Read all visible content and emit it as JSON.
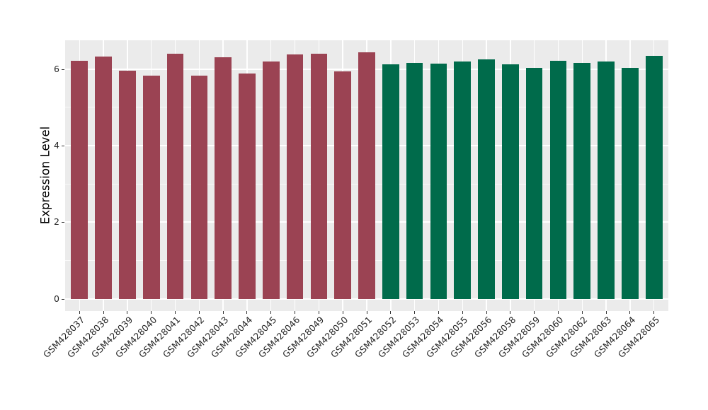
{
  "chart_data": {
    "type": "bar",
    "title": "",
    "xlabel": "",
    "ylabel": "Expression Level",
    "ylim": [
      0,
      6.8
    ],
    "yticks": [
      0,
      2,
      4,
      6
    ],
    "minor_gridlines": [
      1,
      3,
      5
    ],
    "legend": "none",
    "grid": "on",
    "plot_bg_color": "#EBEBEB",
    "grid_color": "#FFFFFF",
    "tick_color": "#333333",
    "tick_label_color": "#262626",
    "group_colors": {
      "red_group": "#9B4353",
      "green_group": "#006B4B"
    },
    "bars": [
      {
        "label": "GSM428037",
        "value": 6.21,
        "color": "#9B4353"
      },
      {
        "label": "GSM428038",
        "value": 6.33,
        "color": "#9B4353"
      },
      {
        "label": "GSM428039",
        "value": 5.95,
        "color": "#9B4353"
      },
      {
        "label": "GSM428040",
        "value": 5.83,
        "color": "#9B4353"
      },
      {
        "label": "GSM428041",
        "value": 6.4,
        "color": "#9B4353"
      },
      {
        "label": "GSM428042",
        "value": 5.83,
        "color": "#9B4353"
      },
      {
        "label": "GSM428043",
        "value": 6.31,
        "color": "#9B4353"
      },
      {
        "label": "GSM428044",
        "value": 5.88,
        "color": "#9B4353"
      },
      {
        "label": "GSM428045",
        "value": 6.2,
        "color": "#9B4353"
      },
      {
        "label": "GSM428046",
        "value": 6.38,
        "color": "#9B4353"
      },
      {
        "label": "GSM428049",
        "value": 6.4,
        "color": "#9B4353"
      },
      {
        "label": "GSM428050",
        "value": 5.93,
        "color": "#9B4353"
      },
      {
        "label": "GSM428051",
        "value": 6.43,
        "color": "#9B4353"
      },
      {
        "label": "GSM428052",
        "value": 6.12,
        "color": "#006B4B"
      },
      {
        "label": "GSM428053",
        "value": 6.16,
        "color": "#006B4B"
      },
      {
        "label": "GSM428054",
        "value": 6.14,
        "color": "#006B4B"
      },
      {
        "label": "GSM428055",
        "value": 6.19,
        "color": "#006B4B"
      },
      {
        "label": "GSM428056",
        "value": 6.25,
        "color": "#006B4B"
      },
      {
        "label": "GSM428058",
        "value": 6.13,
        "color": "#006B4B"
      },
      {
        "label": "GSM428059",
        "value": 6.03,
        "color": "#006B4B"
      },
      {
        "label": "GSM428060",
        "value": 6.22,
        "color": "#006B4B"
      },
      {
        "label": "GSM428062",
        "value": 6.16,
        "color": "#006B4B"
      },
      {
        "label": "GSM428063",
        "value": 6.19,
        "color": "#006B4B"
      },
      {
        "label": "GSM428064",
        "value": 6.03,
        "color": "#006B4B"
      },
      {
        "label": "GSM428065",
        "value": 6.35,
        "color": "#006B4B"
      }
    ]
  }
}
